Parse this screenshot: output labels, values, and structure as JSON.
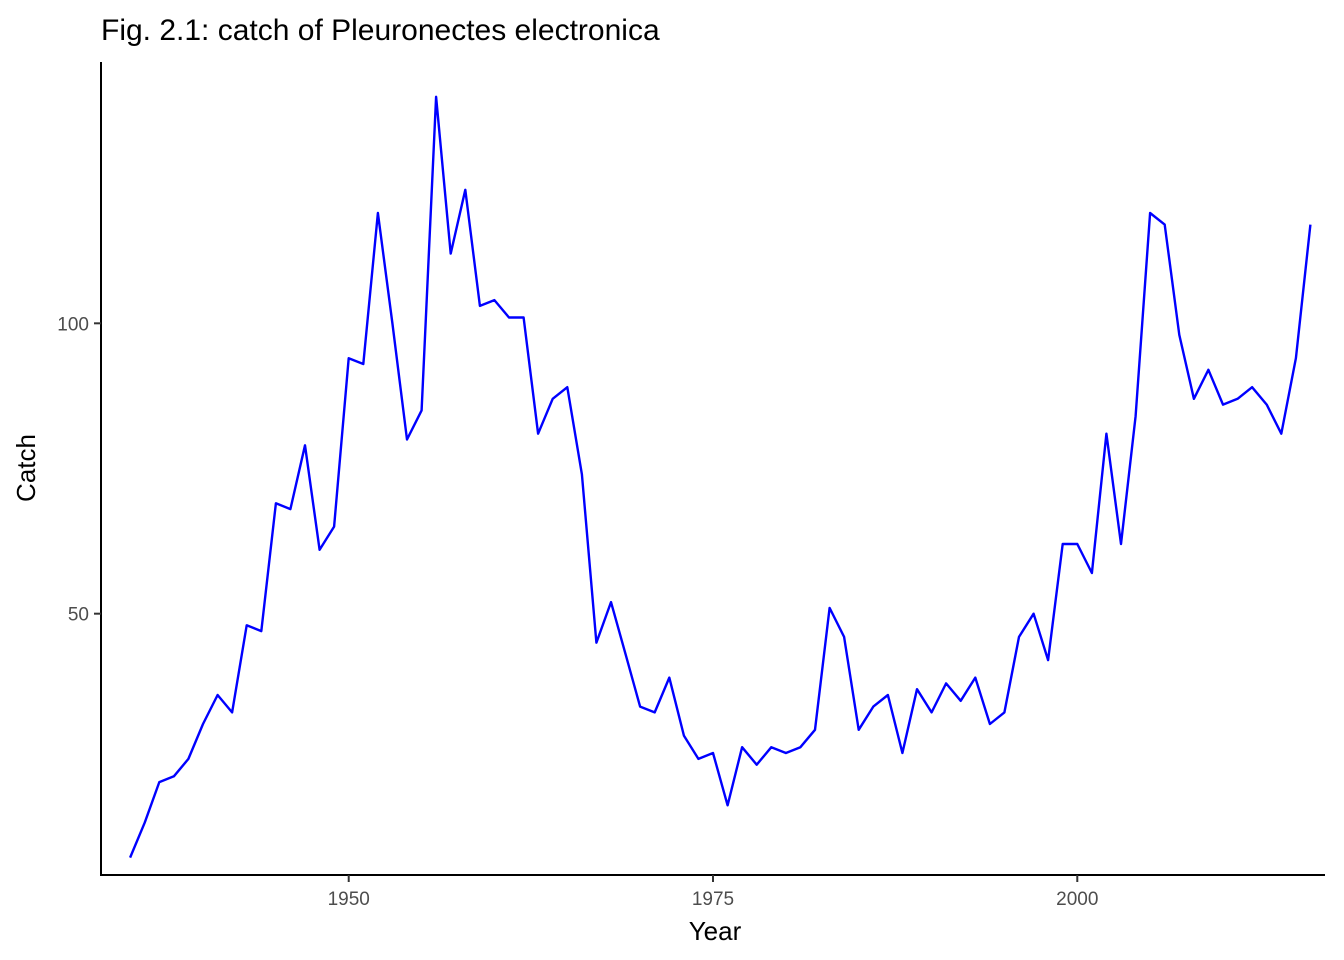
{
  "chart_data": {
    "type": "line",
    "title": "Fig. 2.1: catch of Pleuronectes electronica",
    "xlabel": "Year",
    "ylabel": "Catch",
    "xlim": [
      1933,
      2017
    ],
    "ylim": [
      5,
      145
    ],
    "x_ticks": [
      1950,
      1975,
      2000
    ],
    "y_ticks": [
      50,
      100
    ],
    "grid": false,
    "series_color": "#0000ff",
    "series": [
      {
        "x": [
          1935,
          1936,
          1937,
          1938,
          1939,
          1940,
          1941,
          1942,
          1943,
          1944,
          1945,
          1946,
          1947,
          1948,
          1949,
          1950,
          1951,
          1952,
          1953,
          1954,
          1955,
          1956,
          1957,
          1958,
          1959,
          1960,
          1961,
          1962,
          1963,
          1964,
          1965,
          1966,
          1967,
          1968,
          1969,
          1970,
          1971,
          1972,
          1973,
          1974,
          1975,
          1976,
          1977,
          1978,
          1979,
          1980,
          1981,
          1982,
          1983,
          1984,
          1985,
          1986,
          1987,
          1988,
          1989,
          1990,
          1991,
          1992,
          1993,
          1994,
          1995,
          1996,
          1997,
          1998,
          1999,
          2000,
          2001,
          2002,
          2003,
          2004,
          2005,
          2006,
          2007,
          2008,
          2009,
          2010,
          2011,
          2012,
          2013,
          2014,
          2015,
          2016
        ],
        "y": [
          8,
          14,
          21,
          22,
          25,
          31,
          36,
          33,
          48,
          47,
          69,
          68,
          79,
          61,
          65,
          94,
          93,
          119,
          100,
          80,
          85,
          139,
          112,
          123,
          103,
          104,
          101,
          101,
          81,
          87,
          89,
          74,
          45,
          52,
          43,
          34,
          33,
          39,
          29,
          25,
          26,
          17,
          27,
          24,
          27,
          26,
          27,
          30,
          51,
          46,
          30,
          34,
          36,
          26,
          37,
          33,
          38,
          35,
          39,
          31,
          33,
          46,
          50,
          42,
          62,
          62,
          57,
          81,
          62,
          84,
          119,
          117,
          98,
          87,
          92,
          86,
          87,
          89,
          86,
          81,
          94,
          117
        ]
      }
    ]
  }
}
